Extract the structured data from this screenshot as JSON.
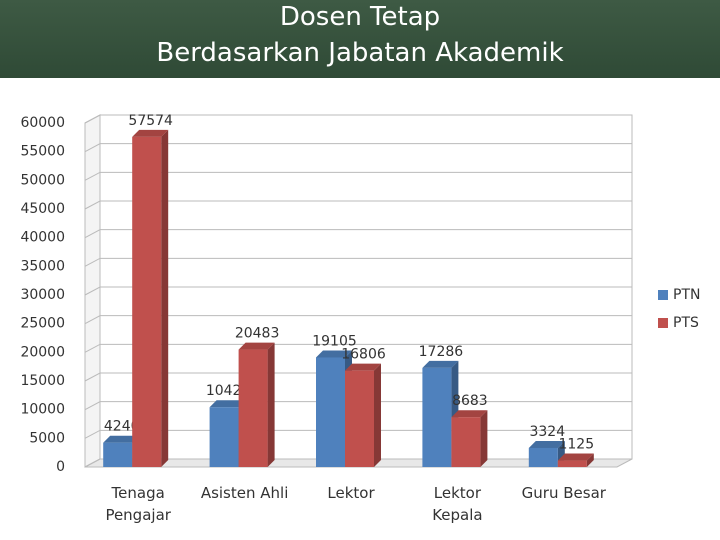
{
  "chart_data": {
    "type": "bar3d",
    "title": "Dosen Tetap",
    "subtitle": "Berdasarkan Jabatan Akademik",
    "categories": [
      "Tenaga Pengajar",
      "Asisten Ahli",
      "Lektor",
      "Lektor Kepala",
      "Guru Besar"
    ],
    "series": [
      {
        "name": "PTN",
        "color": "#4f81bd",
        "values": [
          4240,
          10424,
          19105,
          17286,
          3324
        ]
      },
      {
        "name": "PTS",
        "color": "#c0504d",
        "values": [
          57574,
          20483,
          16806,
          8683,
          1125
        ]
      }
    ],
    "ylim": [
      0,
      60000
    ],
    "yticks": [
      0,
      5000,
      10000,
      15000,
      20000,
      25000,
      30000,
      35000,
      40000,
      45000,
      50000,
      55000,
      60000
    ],
    "grid": true,
    "legend": "right"
  }
}
